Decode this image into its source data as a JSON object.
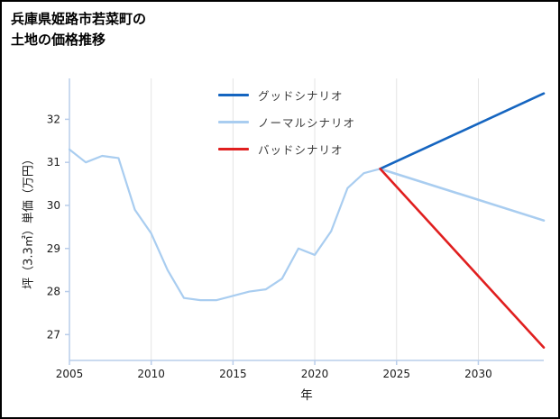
{
  "page": {
    "title_line1": "兵庫県姫路市若菜町の",
    "title_line2": "土地の価格推移"
  },
  "chart_data": {
    "type": "line",
    "title": "兵庫県姫路市若菜町の土地の価格推移",
    "xlabel": "年",
    "ylabel": "坪（3.3㎡）単価（万円）",
    "xlim": [
      2005,
      2034
    ],
    "ylim": [
      26.4,
      32.95
    ],
    "xticks": [
      2005,
      2010,
      2015,
      2020,
      2025,
      2030
    ],
    "yticks": [
      27,
      28,
      29,
      30,
      31,
      32
    ],
    "grid": "vertical-only",
    "legend_position": "top-center-inside",
    "colors": {
      "grid": "#e4e4e4",
      "axis": "#b9cdea",
      "tick_label": "#1a1a1a",
      "good": "#1565c0",
      "normal": "#a9cdf0",
      "bad": "#e01f1f",
      "historical": "#a9cdf0"
    },
    "series": [
      {
        "name": "historical",
        "color": "#a9cdf0",
        "width": 2.2,
        "x": [
          2005,
          2006,
          2007,
          2008,
          2009,
          2010,
          2011,
          2012,
          2013,
          2014,
          2015,
          2016,
          2017,
          2018,
          2019,
          2020,
          2021,
          2022,
          2023,
          2024
        ],
        "values": [
          31.3,
          31.0,
          31.15,
          31.1,
          29.9,
          29.35,
          28.5,
          27.85,
          27.8,
          27.8,
          27.9,
          28.0,
          28.05,
          28.3,
          29.0,
          28.85,
          29.4,
          30.4,
          30.75,
          30.85
        ]
      },
      {
        "name": "ノーマルシナリオ",
        "color": "#a9cdf0",
        "width": 2.6,
        "x": [
          2024,
          2034
        ],
        "values": [
          30.85,
          29.65
        ]
      },
      {
        "name": "グッドシナリオ",
        "color": "#1565c0",
        "width": 2.6,
        "x": [
          2024,
          2034
        ],
        "values": [
          30.85,
          32.6
        ]
      },
      {
        "name": "バッドシナリオ",
        "color": "#e01f1f",
        "width": 2.6,
        "x": [
          2024,
          2034
        ],
        "values": [
          30.85,
          26.7
        ]
      }
    ],
    "legend": [
      {
        "label": "グッドシナリオ",
        "color": "#1565c0"
      },
      {
        "label": "ノーマルシナリオ",
        "color": "#a9cdf0"
      },
      {
        "label": "バッドシナリオ",
        "color": "#e01f1f"
      }
    ]
  }
}
